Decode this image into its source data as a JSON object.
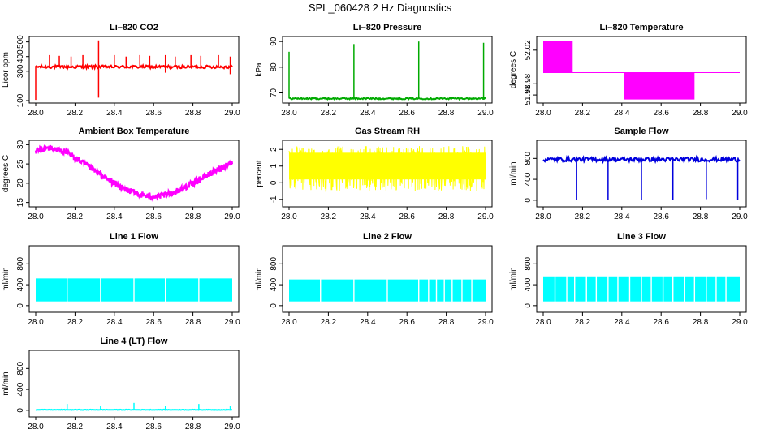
{
  "figure_title": "SPL_060428  2 Hz Diagnostics",
  "colors": {
    "red": "#ff0000",
    "green": "#00aa00",
    "magenta": "#ff00ff",
    "yellow": "#ffff00",
    "blue": "#0000dd",
    "cyan": "#00ffff"
  },
  "chart_data": [
    {
      "type": "line",
      "title": "Li–820 CO2",
      "ylabel": "Licor ppm",
      "xlim": [
        28.0,
        29.0
      ],
      "ylim": [
        100,
        520
      ],
      "x_ticks": [
        "28.0",
        "28.2",
        "28.4",
        "28.6",
        "28.8",
        "29.0"
      ],
      "y_ticks": [
        100,
        300,
        400,
        500
      ],
      "series": [
        {
          "name": "CO2",
          "color": "red",
          "baseline": 330,
          "noise": 10,
          "spikes_up": [
            {
              "x": 28.07,
              "y": 410
            },
            {
              "x": 28.12,
              "y": 405
            },
            {
              "x": 28.18,
              "y": 400
            },
            {
              "x": 28.24,
              "y": 410
            },
            {
              "x": 28.32,
              "y": 510
            },
            {
              "x": 28.4,
              "y": 410
            },
            {
              "x": 28.46,
              "y": 400
            },
            {
              "x": 28.53,
              "y": 410
            },
            {
              "x": 28.58,
              "y": 405
            },
            {
              "x": 28.66,
              "y": 410
            },
            {
              "x": 28.71,
              "y": 400
            },
            {
              "x": 28.79,
              "y": 410
            },
            {
              "x": 28.84,
              "y": 405
            },
            {
              "x": 28.93,
              "y": 410
            },
            {
              "x": 28.99,
              "y": 400
            }
          ],
          "spikes_down": [
            {
              "x": 28.0,
              "y": 105
            },
            {
              "x": 28.32,
              "y": 120
            },
            {
              "x": 28.66,
              "y": 290
            },
            {
              "x": 28.99,
              "y": 280
            }
          ]
        }
      ]
    },
    {
      "type": "line",
      "title": "Li–820 Pressure",
      "ylabel": "kPa",
      "xlim": [
        28.0,
        29.0
      ],
      "ylim": [
        67,
        91
      ],
      "x_ticks": [
        "28.0",
        "28.2",
        "28.4",
        "28.6",
        "28.8",
        "29.0"
      ],
      "y_ticks": [
        70,
        80,
        90
      ],
      "series": [
        {
          "name": "Pressure",
          "color": "green",
          "baseline": 67.8,
          "noise": 0.3,
          "spikes_up": [
            {
              "x": 28.0,
              "y": 86
            },
            {
              "x": 28.33,
              "y": 89
            },
            {
              "x": 28.66,
              "y": 90
            },
            {
              "x": 28.99,
              "y": 89.5
            }
          ]
        }
      ]
    },
    {
      "type": "area",
      "title": "Li–820 Temperature",
      "ylabel": "degrees C",
      "xlim": [
        28.0,
        29.0
      ],
      "ylim": [
        51.975,
        52.03
      ],
      "x_ticks": [
        "28.0",
        "28.2",
        "28.4",
        "28.6",
        "28.8",
        "29.0"
      ],
      "y_ticks": [
        "51.98",
        "51.98",
        "52.02"
      ],
      "series": [
        {
          "name": "Temperature",
          "color": "magenta",
          "level": 52.0,
          "high_band": {
            "x": [
              28.0,
              28.15
            ],
            "top": 52.028
          },
          "low_band": {
            "x": [
              28.41,
              28.77
            ],
            "bottom": 51.976
          }
        }
      ]
    },
    {
      "type": "line",
      "title": "Ambient Box Temperature",
      "ylabel": "degrees C",
      "xlim": [
        28.0,
        29.0
      ],
      "ylim": [
        14.5,
        30.5
      ],
      "x_ticks": [
        "28.0",
        "28.2",
        "28.4",
        "28.6",
        "28.8",
        "29.0"
      ],
      "y_ticks": [
        15,
        20,
        25,
        30
      ],
      "series": [
        {
          "name": "Ambient",
          "color": "magenta",
          "points": [
            [
              28.0,
              28.3
            ],
            [
              28.07,
              29.2
            ],
            [
              28.15,
              28.2
            ],
            [
              28.25,
              25.0
            ],
            [
              28.35,
              21.5
            ],
            [
              28.45,
              18.5
            ],
            [
              28.55,
              16.8
            ],
            [
              28.62,
              16.5
            ],
            [
              28.7,
              17.5
            ],
            [
              28.8,
              20.0
            ],
            [
              28.9,
              22.8
            ],
            [
              29.0,
              25.5
            ]
          ],
          "noise": 0.8
        }
      ]
    },
    {
      "type": "line",
      "title": "Gas Stream RH",
      "ylabel": "percent",
      "xlim": [
        28.0,
        29.0
      ],
      "ylim": [
        -1.3,
        2.4
      ],
      "x_ticks": [
        "28.0",
        "28.2",
        "28.4",
        "28.6",
        "28.8",
        "29.0"
      ],
      "y_ticks": [
        -1,
        0,
        1,
        2
      ],
      "series": [
        {
          "name": "RH",
          "color": "yellow",
          "baseline": 1.0,
          "noise_range": [
            -0.5,
            2.2
          ]
        }
      ]
    },
    {
      "type": "line",
      "title": "Sample Flow",
      "ylabel": "ml/min",
      "xlim": [
        28.0,
        29.0
      ],
      "ylim": [
        -80,
        1100
      ],
      "x_ticks": [
        "28.0",
        "28.2",
        "28.4",
        "28.6",
        "28.8",
        "29.0"
      ],
      "y_ticks": [
        0,
        400,
        800
      ],
      "series": [
        {
          "name": "Sample",
          "color": "blue",
          "baseline": 780,
          "noise": 40,
          "spikes_down": [
            {
              "x": 28.17,
              "y": 0
            },
            {
              "x": 28.33,
              "y": 0
            },
            {
              "x": 28.5,
              "y": 0
            },
            {
              "x": 28.66,
              "y": 0
            },
            {
              "x": 28.83,
              "y": 20
            },
            {
              "x": 28.99,
              "y": 10
            }
          ]
        }
      ]
    },
    {
      "type": "area",
      "title": "Line 1 Flow",
      "ylabel": "ml/min",
      "xlim": [
        28.0,
        29.0
      ],
      "ylim": [
        -80,
        1100
      ],
      "x_ticks": [
        "28.0",
        "28.2",
        "28.4",
        "28.6",
        "28.8",
        "29.0"
      ],
      "y_ticks": [
        0,
        400,
        800
      ],
      "series": [
        {
          "name": "Line 1",
          "color": "cyan",
          "band": {
            "bottom": 80,
            "top_start": 500,
            "top_end": 520
          },
          "gaps": [
            28.16,
            28.33,
            28.5,
            28.66,
            28.83
          ]
        }
      ]
    },
    {
      "type": "area",
      "title": "Line 2 Flow",
      "ylabel": "ml/min",
      "xlim": [
        28.0,
        29.0
      ],
      "ylim": [
        -80,
        1100
      ],
      "x_ticks": [
        "28.0",
        "28.2",
        "28.4",
        "28.6",
        "28.8",
        "29.0"
      ],
      "y_ticks": [
        0,
        400,
        800
      ],
      "series": [
        {
          "name": "Line 2",
          "color": "cyan",
          "band": {
            "bottom": 80,
            "top_start": 480,
            "top_end": 500
          },
          "gaps": [
            28.16,
            28.33,
            28.5,
            28.66,
            28.71,
            28.75,
            28.79,
            28.83,
            28.88,
            28.93
          ]
        }
      ]
    },
    {
      "type": "area",
      "title": "Line 3 Flow",
      "ylabel": "ml/min",
      "xlim": [
        28.0,
        29.0
      ],
      "ylim": [
        -80,
        1100
      ],
      "x_ticks": [
        "28.0",
        "28.2",
        "28.4",
        "28.6",
        "28.8",
        "29.0"
      ],
      "y_ticks": [
        0,
        400,
        800
      ],
      "series": [
        {
          "name": "Line 3",
          "color": "cyan",
          "band": {
            "bottom": 80,
            "top_start": 540,
            "top_end": 560
          },
          "gaps": [
            28.06,
            28.12,
            28.16,
            28.22,
            28.27,
            28.33,
            28.38,
            28.44,
            28.5,
            28.55,
            28.61,
            28.66,
            28.72,
            28.77,
            28.83,
            28.88,
            28.93
          ]
        }
      ]
    },
    {
      "type": "line",
      "title": "Line 4 (LT) Flow",
      "ylabel": "ml/min",
      "xlim": [
        28.0,
        29.0
      ],
      "ylim": [
        -80,
        1100
      ],
      "x_ticks": [
        "28.0",
        "28.2",
        "28.4",
        "28.6",
        "28.8",
        "29.0"
      ],
      "y_ticks": [
        0,
        400,
        800
      ],
      "series": [
        {
          "name": "Line 4",
          "color": "cyan",
          "baseline": 10,
          "noise": 5,
          "spikes_up": [
            {
              "x": 28.16,
              "y": 120
            },
            {
              "x": 28.33,
              "y": 80
            },
            {
              "x": 28.5,
              "y": 140
            },
            {
              "x": 28.66,
              "y": 90
            },
            {
              "x": 28.83,
              "y": 120
            },
            {
              "x": 28.99,
              "y": 90
            }
          ]
        }
      ]
    }
  ]
}
